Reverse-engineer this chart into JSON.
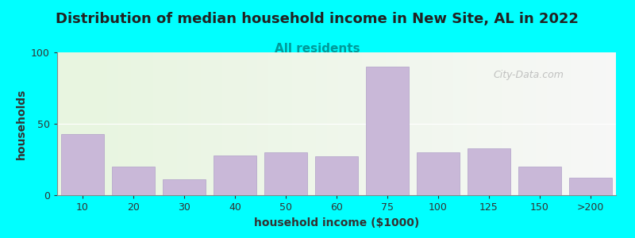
{
  "title": "Distribution of median household income in New Site, AL in 2022",
  "subtitle": "All residents",
  "xlabel": "household income ($1000)",
  "ylabel": "households",
  "background_outer": "#00FFFF",
  "bar_color": "#C9B8D8",
  "bar_edge_color": "#B0A0C8",
  "plot_bg_color_left": "#E8F5E0",
  "plot_bg_color_right": "#F8F8F8",
  "categories": [
    "10",
    "20",
    "30",
    "40",
    "50",
    "60",
    "75",
    "100",
    "125",
    "150",
    ">200"
  ],
  "values": [
    43,
    20,
    11,
    28,
    30,
    27,
    90,
    30,
    33,
    20,
    12
  ],
  "ylim": [
    0,
    100
  ],
  "yticks": [
    0,
    50,
    100
  ],
  "watermark": "City-Data.com",
  "title_fontsize": 13,
  "subtitle_fontsize": 11,
  "axis_label_fontsize": 10
}
